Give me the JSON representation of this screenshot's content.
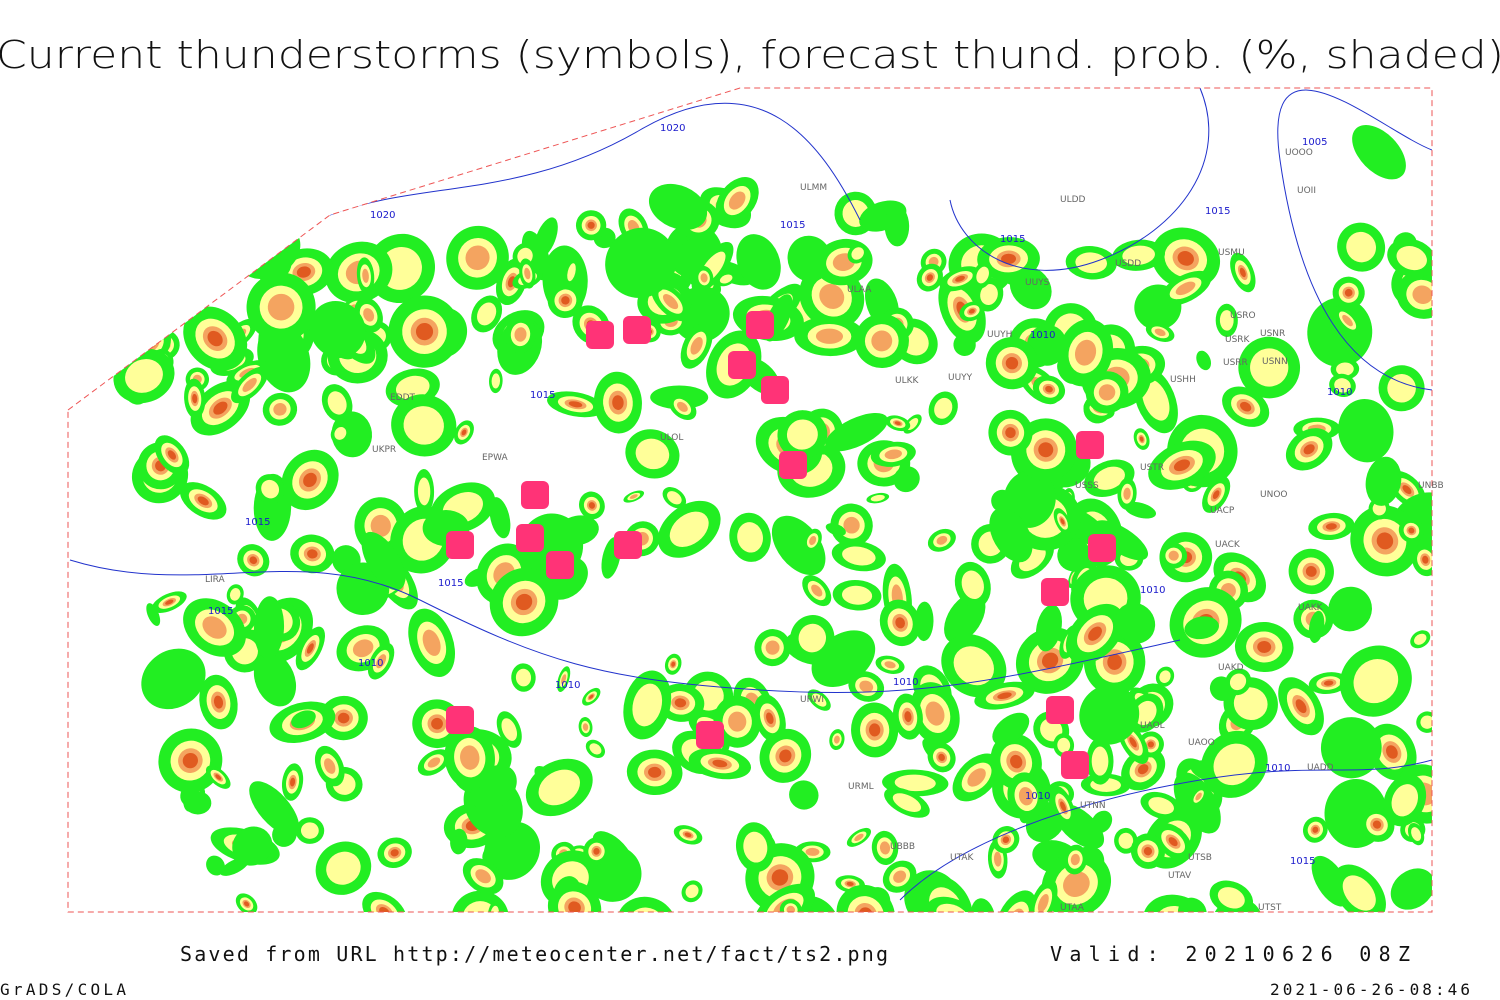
{
  "header": {
    "title": "Current thunderstorms (symbols), forecast thund. prob. (%, shaded)"
  },
  "footer": {
    "source": "Saved from URL http://meteocenter.net/fact/ts2.png",
    "valid": "Valid: 20210626 08Z",
    "software": "GrADS/COLA",
    "timestamp": "2021-06-26-08:46"
  },
  "map": {
    "isobar_labels": [
      "1020",
      "1020",
      "1015",
      "1015",
      "1015",
      "1015",
      "1015",
      "1015",
      "1015",
      "1010",
      "1010",
      "1010",
      "1010",
      "1010",
      "1010",
      "1010",
      "1010",
      "1005",
      "1015"
    ],
    "station_labels": [
      "ULMM",
      "ULDD",
      "USDD",
      "USMU",
      "ULAA",
      "UUYS",
      "USRO",
      "USRK",
      "USNR",
      "UUYH",
      "USRR",
      "USNN",
      "ULKK",
      "UUYY",
      "USHH",
      "EDDT",
      "UKPR",
      "EPWA",
      "LIRA",
      "ULOL",
      "USSS",
      "USTR",
      "UNOO",
      "UACP",
      "UACK",
      "UAKK",
      "UAKD",
      "UAOL",
      "UAOO",
      "UADD",
      "UTNN",
      "UTAK",
      "UTAV",
      "UTSB",
      "UTAA",
      "UTST",
      "UOOO",
      "UOII",
      "UNBB",
      "URWI",
      "URML",
      "UBBB"
    ]
  }
}
